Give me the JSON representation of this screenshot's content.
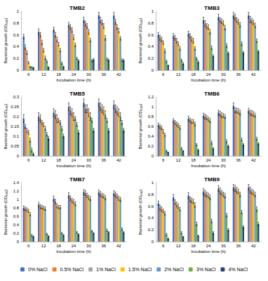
{
  "chart_data": [
    {
      "type": "bar",
      "title": "TMB2",
      "xlabel": "Incubation time (h)",
      "ylabel": "Bacterial growth (OD₆₀₀)",
      "categories": [
        "6",
        "12",
        "18",
        "24",
        "30",
        "36",
        "42"
      ],
      "ylim": [
        0,
        1
      ],
      "yticks": [
        0,
        0.2,
        0.4,
        0.6,
        0.8,
        1
      ],
      "grid": false,
      "legend": "bottom",
      "series": [
        {
          "name": "0% NaCl",
          "color": "#4472c4",
          "values": [
            0.57,
            0.65,
            0.69,
            0.77,
            0.85,
            0.93,
            0.93
          ],
          "errors": [
            0.04,
            0.05,
            0.04,
            0.04,
            0.05,
            0.05,
            0.05
          ]
        },
        {
          "name": "0.5% NaCl",
          "color": "#ed7d31",
          "values": [
            0.39,
            0.6,
            0.6,
            0.73,
            0.79,
            0.85,
            0.82
          ],
          "errors": [
            0.04,
            0.04,
            0.04,
            0.04,
            0.04,
            0.05,
            0.04
          ]
        },
        {
          "name": "1% NaCl",
          "color": "#a5a5a5",
          "values": [
            0.3,
            0.47,
            0.52,
            0.68,
            0.75,
            0.81,
            0.73
          ],
          "errors": [
            0.03,
            0.04,
            0.04,
            0.04,
            0.04,
            0.04,
            0.04
          ]
        },
        {
          "name": "1.5% NaCl",
          "color": "#ffc000",
          "values": [
            0.13,
            0.34,
            0.44,
            0.56,
            0.65,
            0.75,
            0.67
          ],
          "errors": [
            0.02,
            0.03,
            0.03,
            0.04,
            0.04,
            0.04,
            0.04
          ]
        },
        {
          "name": "2% NaCl",
          "color": "#5b9bd5",
          "values": [
            0.06,
            0.21,
            0.34,
            0.43,
            0.51,
            0.55,
            0.54
          ],
          "errors": [
            0.01,
            0.03,
            0.03,
            0.03,
            0.03,
            0.04,
            0.03
          ]
        },
        {
          "name": "3% NaCl",
          "color": "#70ad47",
          "values": [
            0.05,
            0.15,
            0.12,
            0.2,
            0.16,
            0.19,
            0.17
          ],
          "errors": [
            0.01,
            0.02,
            0.02,
            0.02,
            0.02,
            0.02,
            0.02
          ]
        },
        {
          "name": "4% NaCl",
          "color": "#264478",
          "values": [
            0.04,
            0.05,
            0.06,
            0.16,
            0.18,
            0.17,
            0.17
          ],
          "errors": [
            0.01,
            0.01,
            0.01,
            0.02,
            0.02,
            0.02,
            0.02
          ]
        }
      ]
    },
    {
      "type": "bar",
      "title": "TMB3",
      "xlabel": "Incubation time (h)",
      "ylabel": "Bacterial growth (OD₆₀₀)",
      "categories": [
        "6",
        "12",
        "18",
        "24",
        "30",
        "36",
        "42"
      ],
      "ylim": [
        0,
        1
      ],
      "yticks": [
        0,
        0.2,
        0.4,
        0.6,
        0.8,
        1
      ],
      "grid": false,
      "legend": "bottom",
      "series": [
        {
          "name": "0% NaCl",
          "color": "#4472c4",
          "values": [
            0.6,
            0.58,
            0.62,
            0.85,
            0.9,
            0.93,
            0.93
          ],
          "errors": [
            0.04,
            0.04,
            0.04,
            0.05,
            0.05,
            0.05,
            0.05
          ]
        },
        {
          "name": "0.5% NaCl",
          "color": "#ed7d31",
          "values": [
            0.55,
            0.55,
            0.58,
            0.79,
            0.85,
            0.9,
            0.86
          ],
          "errors": [
            0.04,
            0.04,
            0.04,
            0.05,
            0.04,
            0.05,
            0.05
          ]
        },
        {
          "name": "1% NaCl",
          "color": "#a5a5a5",
          "values": [
            0.52,
            0.5,
            0.53,
            0.75,
            0.83,
            0.85,
            0.84
          ],
          "errors": [
            0.04,
            0.04,
            0.04,
            0.04,
            0.04,
            0.04,
            0.04
          ]
        },
        {
          "name": "1.5% NaCl",
          "color": "#ffc000",
          "values": [
            0.47,
            0.45,
            0.5,
            0.73,
            0.8,
            0.82,
            0.81
          ],
          "errors": [
            0.03,
            0.03,
            0.04,
            0.04,
            0.04,
            0.04,
            0.04
          ]
        },
        {
          "name": "2% NaCl",
          "color": "#5b9bd5",
          "values": [
            0.33,
            0.37,
            0.37,
            0.65,
            0.72,
            0.77,
            0.76
          ],
          "errors": [
            0.03,
            0.03,
            0.03,
            0.04,
            0.04,
            0.04,
            0.04
          ]
        },
        {
          "name": "3% NaCl",
          "color": "#70ad47",
          "values": [
            0.15,
            0.17,
            0.2,
            0.38,
            0.42,
            0.45,
            0.5
          ],
          "errors": [
            0.02,
            0.02,
            0.02,
            0.03,
            0.03,
            0.03,
            0.03
          ]
        },
        {
          "name": "4% NaCl",
          "color": "#264478",
          "values": [
            0.08,
            0.11,
            0.14,
            0.24,
            0.29,
            0.3,
            0.32
          ],
          "errors": [
            0.01,
            0.02,
            0.02,
            0.02,
            0.02,
            0.02,
            0.02
          ]
        }
      ]
    },
    {
      "type": "bar",
      "title": "TMB5",
      "xlabel": "Incubation time (h)",
      "ylabel": "Bacterial growth (OD₆₀₀)",
      "categories": [
        "6",
        "12",
        "18",
        "24",
        "30",
        "36",
        "42"
      ],
      "ylim": [
        0,
        0.3
      ],
      "yticks": [
        0,
        0.05,
        0.1,
        0.15,
        0.2,
        0.25,
        0.3
      ],
      "grid": false,
      "legend": "bottom",
      "series": [
        {
          "name": "0% NaCl",
          "color": "#4472c4",
          "values": [
            0.19,
            0.2,
            0.22,
            0.25,
            0.27,
            0.27,
            0.26
          ],
          "errors": [
            0.02,
            0.02,
            0.02,
            0.02,
            0.02,
            0.02,
            0.02
          ]
        },
        {
          "name": "0.5% NaCl",
          "color": "#ed7d31",
          "values": [
            0.15,
            0.19,
            0.21,
            0.23,
            0.24,
            0.25,
            0.24
          ],
          "errors": [
            0.01,
            0.02,
            0.02,
            0.02,
            0.02,
            0.02,
            0.02
          ]
        },
        {
          "name": "1% NaCl",
          "color": "#a5a5a5",
          "values": [
            0.13,
            0.17,
            0.19,
            0.22,
            0.24,
            0.24,
            0.23
          ],
          "errors": [
            0.01,
            0.01,
            0.02,
            0.02,
            0.02,
            0.02,
            0.02
          ]
        },
        {
          "name": "1.5% NaCl",
          "color": "#ffc000",
          "values": [
            0.12,
            0.16,
            0.18,
            0.2,
            0.22,
            0.23,
            0.22
          ],
          "errors": [
            0.01,
            0.01,
            0.01,
            0.02,
            0.02,
            0.02,
            0.02
          ]
        },
        {
          "name": "2% NaCl",
          "color": "#5b9bd5",
          "values": [
            0.08,
            0.14,
            0.17,
            0.19,
            0.2,
            0.21,
            0.2
          ],
          "errors": [
            0.01,
            0.01,
            0.01,
            0.01,
            0.02,
            0.02,
            0.02
          ]
        },
        {
          "name": "3% NaCl",
          "color": "#70ad47",
          "values": [
            0.03,
            0.11,
            0.14,
            0.16,
            0.18,
            0.18,
            0.17
          ],
          "errors": [
            0.01,
            0.01,
            0.01,
            0.01,
            0.01,
            0.01,
            0.01
          ]
        },
        {
          "name": "4% NaCl",
          "color": "#264478",
          "values": [
            0.01,
            0.09,
            0.1,
            0.12,
            0.13,
            0.13,
            0.13
          ],
          "errors": [
            0.005,
            0.01,
            0.01,
            0.01,
            0.01,
            0.01,
            0.01
          ]
        }
      ]
    },
    {
      "type": "bar",
      "title": "TMB6",
      "xlabel": "Incubation time (h)",
      "ylabel": "Bacterial growth (OD₆₀₀)",
      "categories": [
        "6",
        "12",
        "18",
        "24",
        "30",
        "36",
        "42"
      ],
      "ylim": [
        0,
        1.2
      ],
      "yticks": [
        0,
        0.2,
        0.4,
        0.6,
        0.8,
        1,
        1.2
      ],
      "grid": false,
      "legend": "bottom",
      "series": [
        {
          "name": "0% NaCl",
          "color": "#4472c4",
          "values": [
            0.63,
            0.72,
            0.76,
            0.82,
            0.88,
            1.02,
            0.92
          ],
          "errors": [
            0.04,
            0.04,
            0.05,
            0.05,
            0.05,
            0.06,
            0.05
          ]
        },
        {
          "name": "0.5% NaCl",
          "color": "#ed7d31",
          "values": [
            0.6,
            0.68,
            0.73,
            0.8,
            0.86,
            0.93,
            0.88
          ],
          "errors": [
            0.04,
            0.04,
            0.04,
            0.05,
            0.05,
            0.05,
            0.05
          ]
        },
        {
          "name": "1% NaCl",
          "color": "#a5a5a5",
          "values": [
            0.57,
            0.65,
            0.7,
            0.78,
            0.83,
            0.92,
            0.87
          ],
          "errors": [
            0.04,
            0.04,
            0.04,
            0.04,
            0.05,
            0.05,
            0.05
          ]
        },
        {
          "name": "1.5% NaCl",
          "color": "#ffc000",
          "values": [
            0.5,
            0.62,
            0.7,
            0.75,
            0.82,
            0.91,
            0.85
          ],
          "errors": [
            0.04,
            0.04,
            0.04,
            0.04,
            0.04,
            0.05,
            0.05
          ]
        },
        {
          "name": "2% NaCl",
          "color": "#5b9bd5",
          "values": [
            0.43,
            0.58,
            0.65,
            0.72,
            0.8,
            0.88,
            0.83
          ],
          "errors": [
            0.03,
            0.04,
            0.04,
            0.04,
            0.04,
            0.05,
            0.04
          ]
        },
        {
          "name": "3% NaCl",
          "color": "#70ad47",
          "values": [
            0.1,
            0.15,
            0.23,
            0.27,
            0.3,
            0.33,
            0.35
          ],
          "errors": [
            0.02,
            0.02,
            0.02,
            0.03,
            0.03,
            0.03,
            0.03
          ]
        },
        {
          "name": "4% NaCl",
          "color": "#264478",
          "values": [
            0.07,
            0.1,
            0.12,
            0.15,
            0.2,
            0.23,
            0.25
          ],
          "errors": [
            0.01,
            0.01,
            0.02,
            0.02,
            0.02,
            0.02,
            0.02
          ]
        }
      ]
    },
    {
      "type": "bar",
      "title": "TMB7",
      "xlabel": "Incubation time (h)",
      "ylabel": "Bacterial growth (OD₆₀₀)",
      "categories": [
        "6",
        "12",
        "18",
        "24",
        "30",
        "36",
        "42"
      ],
      "ylim": [
        0,
        1.4
      ],
      "yticks": [
        0,
        0.2,
        0.4,
        0.6,
        0.8,
        1,
        1.2,
        1.4
      ],
      "grid": false,
      "legend": "bottom",
      "series": [
        {
          "name": "0% NaCl",
          "color": "#4472c4",
          "values": [
            0.8,
            0.88,
            1.02,
            1.1,
            1.18,
            1.17,
            1.15
          ],
          "errors": [
            0.05,
            0.05,
            0.06,
            0.06,
            0.06,
            0.06,
            0.06
          ]
        },
        {
          "name": "0.5% NaCl",
          "color": "#ed7d31",
          "values": [
            0.78,
            0.83,
            0.95,
            1.03,
            1.15,
            1.13,
            1.12
          ],
          "errors": [
            0.04,
            0.05,
            0.05,
            0.05,
            0.06,
            0.06,
            0.06
          ]
        },
        {
          "name": "1% NaCl",
          "color": "#a5a5a5",
          "values": [
            0.76,
            0.82,
            0.85,
            0.98,
            1.1,
            1.1,
            1.08
          ],
          "errors": [
            0.04,
            0.04,
            0.05,
            0.05,
            0.05,
            0.05,
            0.05
          ]
        },
        {
          "name": "1.5% NaCl",
          "color": "#ffc000",
          "values": [
            0.73,
            0.8,
            0.82,
            0.95,
            1.05,
            1.08,
            1.03
          ],
          "errors": [
            0.04,
            0.04,
            0.04,
            0.05,
            0.05,
            0.05,
            0.05
          ]
        },
        {
          "name": "2% NaCl",
          "color": "#5b9bd5",
          "values": [
            0.65,
            0.78,
            0.82,
            0.9,
            1.02,
            1.04,
            1.0
          ],
          "errors": [
            0.04,
            0.04,
            0.04,
            0.05,
            0.05,
            0.05,
            0.05
          ]
        },
        {
          "name": "3% NaCl",
          "color": "#70ad47",
          "values": [
            0.15,
            0.18,
            0.2,
            0.22,
            0.25,
            0.27,
            0.3
          ],
          "errors": [
            0.02,
            0.02,
            0.02,
            0.02,
            0.02,
            0.03,
            0.03
          ]
        },
        {
          "name": "4% NaCl",
          "color": "#264478",
          "values": [
            0.12,
            0.13,
            0.15,
            0.17,
            0.2,
            0.22,
            0.22
          ],
          "errors": [
            0.01,
            0.01,
            0.02,
            0.02,
            0.02,
            0.02,
            0.02
          ]
        }
      ]
    },
    {
      "type": "bar",
      "title": "TMB9",
      "xlabel": "Incubation time (h)",
      "ylabel": "Bacterial growth (OD₆₀₀)",
      "categories": [
        "6",
        "12",
        "18",
        "24",
        "30",
        "36",
        "42"
      ],
      "ylim": [
        0,
        1
      ],
      "yticks": [
        0,
        0.2,
        0.4,
        0.6,
        0.8,
        1
      ],
      "grid": false,
      "legend": "bottom",
      "series": [
        {
          "name": "0% NaCl",
          "color": "#4472c4",
          "values": [
            0.65,
            0.75,
            0.78,
            0.85,
            0.9,
            0.92,
            0.92
          ],
          "errors": [
            0.04,
            0.05,
            0.05,
            0.05,
            0.05,
            0.05,
            0.05
          ]
        },
        {
          "name": "0.5% NaCl",
          "color": "#ed7d31",
          "values": [
            0.58,
            0.67,
            0.72,
            0.82,
            0.86,
            0.9,
            0.87
          ],
          "errors": [
            0.04,
            0.04,
            0.04,
            0.05,
            0.05,
            0.05,
            0.05
          ]
        },
        {
          "name": "1% NaCl",
          "color": "#a5a5a5",
          "values": [
            0.55,
            0.63,
            0.7,
            0.8,
            0.83,
            0.87,
            0.85
          ],
          "errors": [
            0.04,
            0.04,
            0.04,
            0.04,
            0.04,
            0.05,
            0.04
          ]
        },
        {
          "name": "1.5% NaCl",
          "color": "#ffc000",
          "values": [
            0.52,
            0.6,
            0.68,
            0.78,
            0.8,
            0.85,
            0.83
          ],
          "errors": [
            0.03,
            0.04,
            0.04,
            0.04,
            0.04,
            0.04,
            0.04
          ]
        },
        {
          "name": "2% NaCl",
          "color": "#5b9bd5",
          "values": [
            0.48,
            0.55,
            0.62,
            0.75,
            0.78,
            0.8,
            0.8
          ],
          "errors": [
            0.03,
            0.03,
            0.04,
            0.04,
            0.04,
            0.04,
            0.04
          ]
        },
        {
          "name": "3% NaCl",
          "color": "#70ad47",
          "values": [
            0.12,
            0.15,
            0.3,
            0.35,
            0.45,
            0.5,
            0.55
          ],
          "errors": [
            0.02,
            0.02,
            0.03,
            0.03,
            0.03,
            0.03,
            0.04
          ]
        },
        {
          "name": "4% NaCl",
          "color": "#264478",
          "values": [
            0.05,
            0.08,
            0.1,
            0.15,
            0.2,
            0.25,
            0.3
          ],
          "errors": [
            0.01,
            0.01,
            0.01,
            0.02,
            0.02,
            0.02,
            0.03
          ]
        }
      ]
    }
  ]
}
